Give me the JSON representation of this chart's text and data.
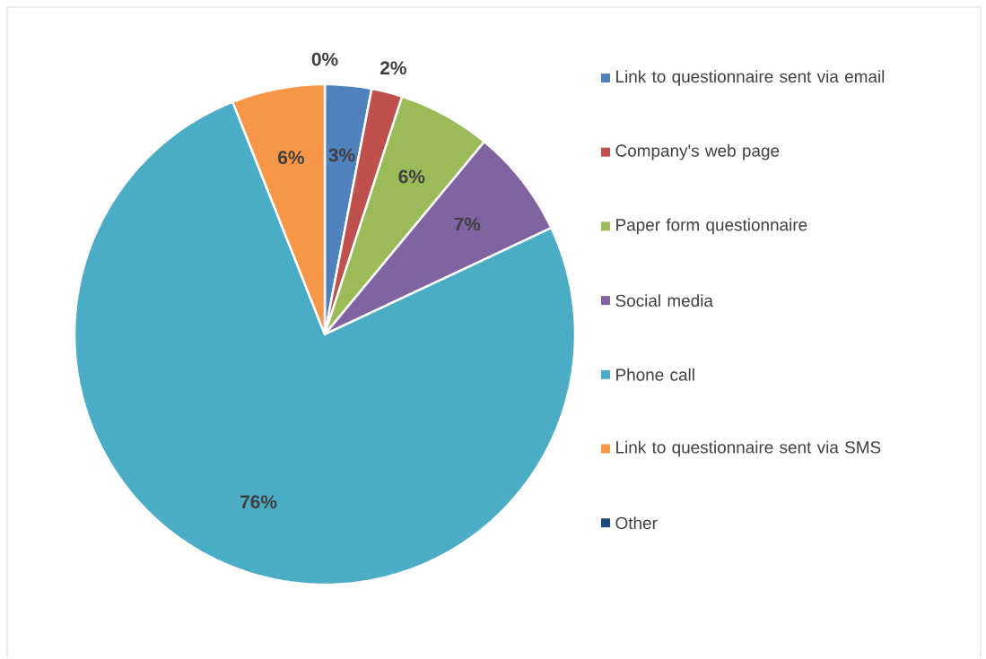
{
  "chart_data": {
    "type": "pie",
    "categories": [
      "Link to questionnaire sent via email",
      "Company's web page",
      "Paper form questionnaire",
      "Social media",
      "Phone call",
      "Link to questionnaire sent via SMS",
      "Other"
    ],
    "values": [
      3,
      2,
      6,
      7,
      76,
      6,
      0
    ],
    "colors": [
      "#4f81bd",
      "#c0504d",
      "#9bbb59",
      "#8064a2",
      "#4bacc6",
      "#f79646",
      "#1f497d"
    ],
    "value_labels": [
      "3%",
      "2%",
      "6%",
      "7%",
      "76%",
      "6%",
      "0%"
    ],
    "legend": "right"
  }
}
